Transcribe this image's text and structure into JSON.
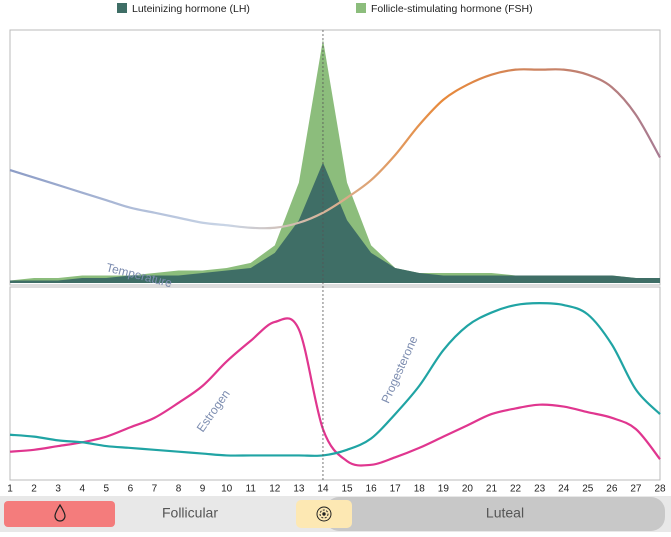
{
  "chart_data": [
    {
      "type": "area",
      "x": [
        1,
        2,
        3,
        4,
        5,
        6,
        7,
        8,
        9,
        10,
        11,
        12,
        13,
        14,
        15,
        16,
        17,
        18,
        19,
        20,
        21,
        22,
        23,
        24,
        25,
        26,
        27,
        28
      ],
      "xlim": [
        1,
        28
      ],
      "ylim": [
        0,
        100
      ],
      "legend": "top",
      "series": [
        {
          "name": "Luteinizing hormone (LH)",
          "color": "#3f6e66",
          "values": [
            1,
            1,
            1,
            2,
            2,
            3,
            3,
            3,
            4,
            5,
            6,
            12,
            25,
            48,
            25,
            12,
            6,
            4,
            3,
            3,
            3,
            3,
            3,
            3,
            3,
            3,
            2,
            2
          ]
        },
        {
          "name": "Follicle-stimulating hormone (FSH)",
          "color": "#8cbd7c",
          "values": [
            1,
            2,
            2,
            3,
            3,
            3,
            4,
            5,
            5,
            6,
            8,
            15,
            40,
            97,
            40,
            15,
            6,
            4,
            4,
            4,
            4,
            3,
            3,
            3,
            3,
            3,
            2,
            2
          ]
        },
        {
          "name": "Temperature",
          "type": "line",
          "colors": [
            "#8c9cc6",
            "#c9d5e6",
            "#e8893a",
            "#a87b92"
          ],
          "values": [
            45,
            42,
            39,
            36,
            33,
            30,
            28,
            26,
            24,
            23,
            22,
            22,
            24,
            28,
            34,
            41,
            51,
            63,
            73,
            79,
            83,
            85,
            85,
            85,
            83,
            78,
            67,
            50
          ]
        }
      ]
    },
    {
      "type": "line",
      "x": [
        1,
        2,
        3,
        4,
        5,
        6,
        7,
        8,
        9,
        10,
        11,
        12,
        13,
        14,
        15,
        16,
        17,
        18,
        19,
        20,
        21,
        22,
        23,
        24,
        25,
        26,
        27,
        28
      ],
      "xlim": [
        1,
        28
      ],
      "xticks": [
        1,
        2,
        3,
        4,
        5,
        6,
        7,
        8,
        9,
        10,
        11,
        12,
        13,
        14,
        15,
        16,
        17,
        18,
        19,
        20,
        21,
        22,
        23,
        24,
        25,
        26,
        27,
        28
      ],
      "ylim": [
        0,
        100
      ],
      "series": [
        {
          "name": "Estrogen",
          "color": "#e0368f",
          "values": [
            14,
            15,
            17,
            19,
            22,
            27,
            32,
            40,
            49,
            62,
            73,
            83,
            79,
            26,
            9,
            7,
            11,
            16,
            22,
            28,
            34,
            37,
            39,
            38,
            35,
            32,
            26,
            10
          ]
        },
        {
          "name": "Progesterone",
          "color": "#20a4a4",
          "values": [
            23,
            22,
            20,
            19,
            17,
            16,
            15,
            14,
            13,
            12,
            12,
            12,
            12,
            12,
            15,
            21,
            34,
            49,
            68,
            81,
            88,
            92,
            93,
            92,
            87,
            71,
            47,
            34
          ]
        }
      ]
    }
  ],
  "phase_bar": {
    "labels": [
      "Follicular",
      "Luteal"
    ]
  }
}
